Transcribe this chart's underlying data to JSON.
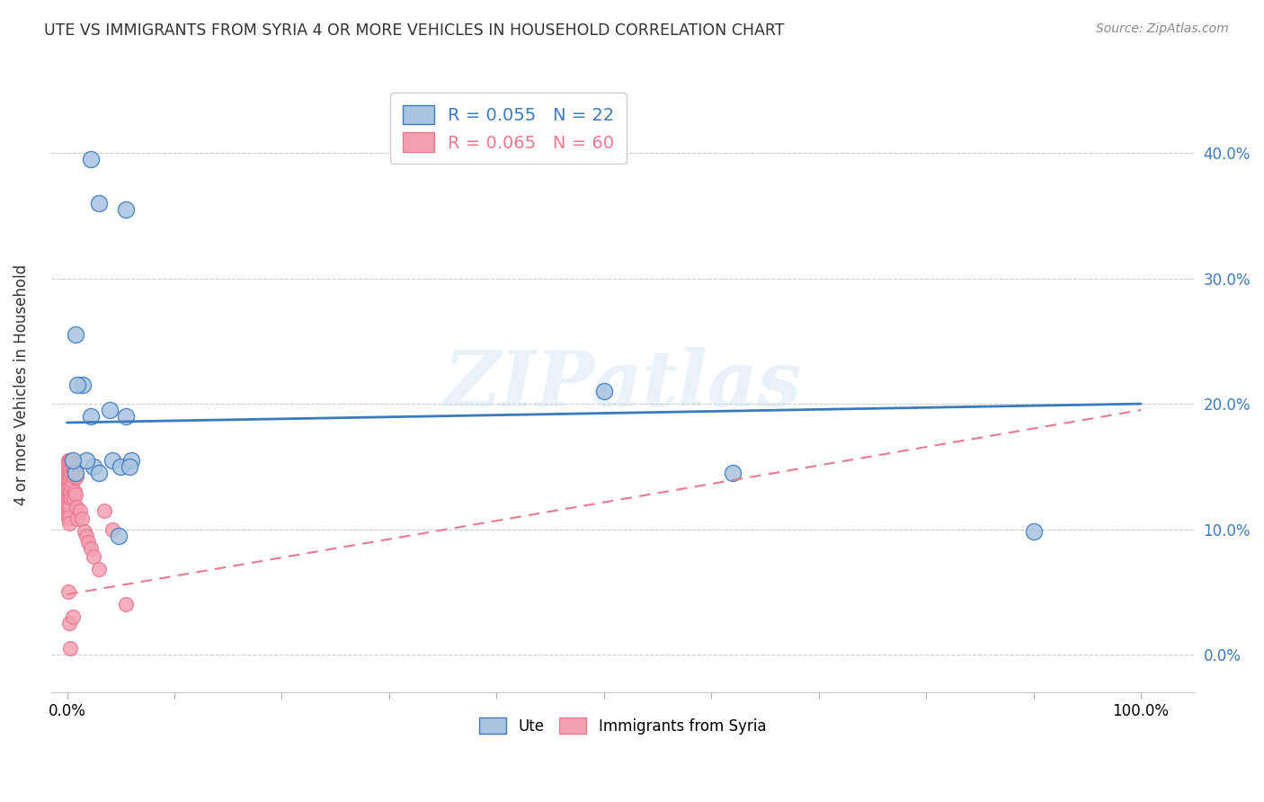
{
  "title": "UTE VS IMMIGRANTS FROM SYRIA 4 OR MORE VEHICLES IN HOUSEHOLD CORRELATION CHART",
  "source": "Source: ZipAtlas.com",
  "xlabel_ticks_outer": [
    "0.0%",
    "100.0%"
  ],
  "xlabel_vals_outer": [
    0.0,
    1.0
  ],
  "ylabel_ticks": [
    "0.0%",
    "10.0%",
    "20.0%",
    "30.0%",
    "40.0%"
  ],
  "ylabel_vals": [
    0.0,
    0.1,
    0.2,
    0.3,
    0.4
  ],
  "ylabel_label": "4 or more Vehicles in Household",
  "legend_blue_r": "R = 0.055",
  "legend_blue_n": "N = 22",
  "legend_pink_r": "R = 0.065",
  "legend_pink_n": "N = 60",
  "legend_label_blue": "Ute",
  "legend_label_pink": "Immigrants from Syria",
  "blue_color": "#a8c4e0",
  "pink_color": "#f4a0b0",
  "blue_line_color": "#3a7abf",
  "pink_line_color": "#e87a90",
  "watermark": "ZIPatlas",
  "blue_scatter_x": [
    0.022,
    0.03,
    0.055,
    0.008,
    0.015,
    0.01,
    0.022,
    0.04,
    0.025,
    0.042,
    0.05,
    0.06,
    0.055,
    0.018,
    0.5,
    0.62,
    0.9,
    0.058,
    0.008,
    0.005,
    0.03,
    0.048
  ],
  "blue_scatter_y": [
    0.395,
    0.36,
    0.355,
    0.255,
    0.215,
    0.215,
    0.19,
    0.195,
    0.15,
    0.155,
    0.15,
    0.155,
    0.19,
    0.155,
    0.21,
    0.145,
    0.098,
    0.15,
    0.145,
    0.155,
    0.145,
    0.095
  ],
  "pink_scatter_x": [
    0.001,
    0.001,
    0.001,
    0.001,
    0.001,
    0.001,
    0.001,
    0.001,
    0.001,
    0.001,
    0.001,
    0.001,
    0.001,
    0.001,
    0.001,
    0.001,
    0.002,
    0.002,
    0.002,
    0.002,
    0.002,
    0.002,
    0.002,
    0.002,
    0.002,
    0.002,
    0.003,
    0.003,
    0.003,
    0.003,
    0.003,
    0.004,
    0.004,
    0.004,
    0.004,
    0.005,
    0.005,
    0.005,
    0.005,
    0.006,
    0.006,
    0.006,
    0.007,
    0.007,
    0.008,
    0.008,
    0.009,
    0.009,
    0.01,
    0.012,
    0.014,
    0.016,
    0.018,
    0.02,
    0.022,
    0.025,
    0.03,
    0.035,
    0.042,
    0.055
  ],
  "pink_scatter_y": [
    0.155,
    0.152,
    0.148,
    0.145,
    0.142,
    0.138,
    0.135,
    0.132,
    0.128,
    0.125,
    0.122,
    0.118,
    0.115,
    0.112,
    0.108,
    0.05,
    0.155,
    0.152,
    0.145,
    0.14,
    0.13,
    0.125,
    0.118,
    0.11,
    0.105,
    0.025,
    0.155,
    0.148,
    0.142,
    0.13,
    0.005,
    0.155,
    0.145,
    0.135,
    0.125,
    0.152,
    0.148,
    0.138,
    0.03,
    0.148,
    0.142,
    0.125,
    0.148,
    0.13,
    0.148,
    0.128,
    0.142,
    0.118,
    0.108,
    0.115,
    0.108,
    0.098,
    0.095,
    0.09,
    0.085,
    0.078,
    0.068,
    0.115,
    0.1,
    0.04
  ],
  "blue_line_x": [
    0.0,
    1.0
  ],
  "blue_line_y": [
    0.185,
    0.2
  ],
  "pink_line_x": [
    0.0,
    1.0
  ],
  "pink_line_y": [
    0.048,
    0.195
  ],
  "xlim": [
    -0.015,
    1.05
  ],
  "ylim": [
    -0.03,
    0.46
  ],
  "n_xticks": 11
}
